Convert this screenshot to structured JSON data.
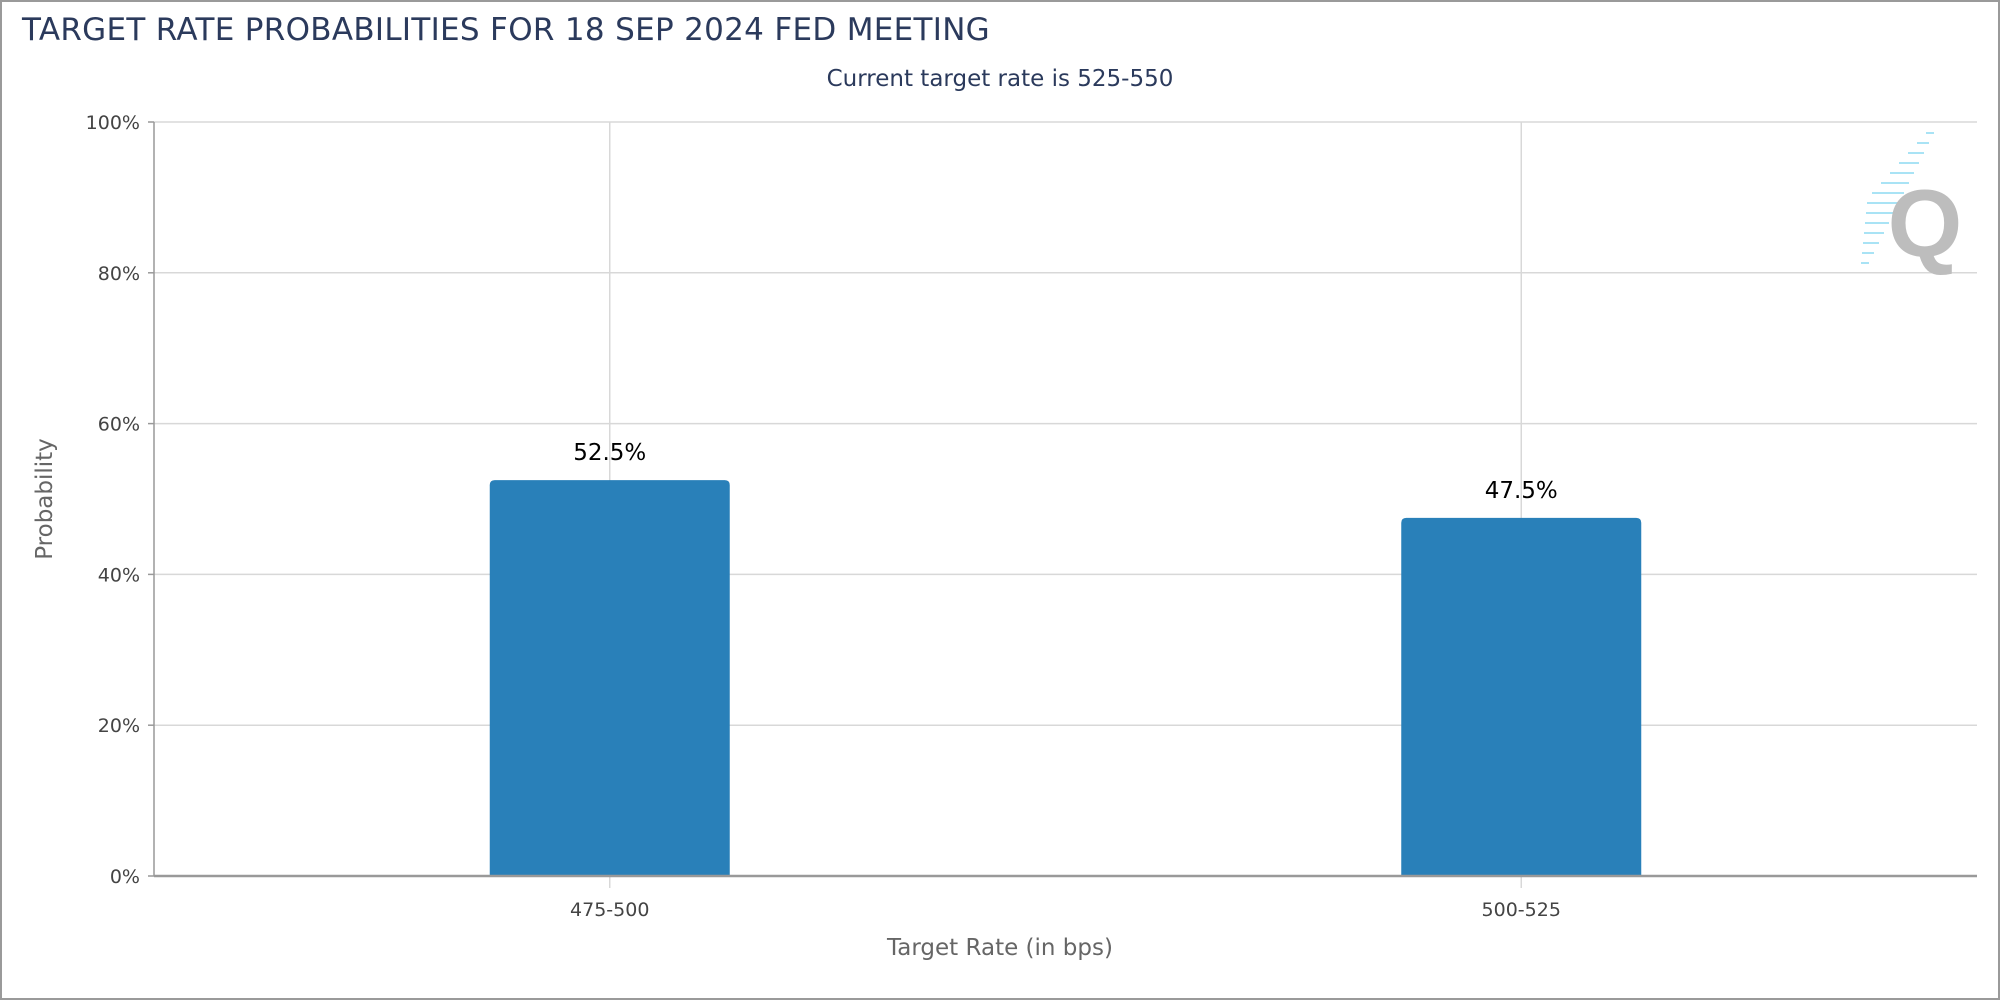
{
  "title": "TARGET RATE PROBABILITIES FOR 18 SEP 2024 FED MEETING",
  "subtitle": "Current target rate is 525-550",
  "watermark": "Q",
  "chart_data": {
    "type": "bar",
    "categories": [
      "475-500",
      "500-525"
    ],
    "values": [
      52.5,
      47.5
    ],
    "data_labels": [
      "52.5%",
      "47.5%"
    ],
    "xlabel": "Target Rate (in bps)",
    "ylabel": "Probability",
    "ylim": [
      0,
      100
    ],
    "yticks": [
      "0%",
      "20%",
      "40%",
      "60%",
      "80%",
      "100%"
    ],
    "grid": true,
    "bar_color": "#2980b9"
  }
}
